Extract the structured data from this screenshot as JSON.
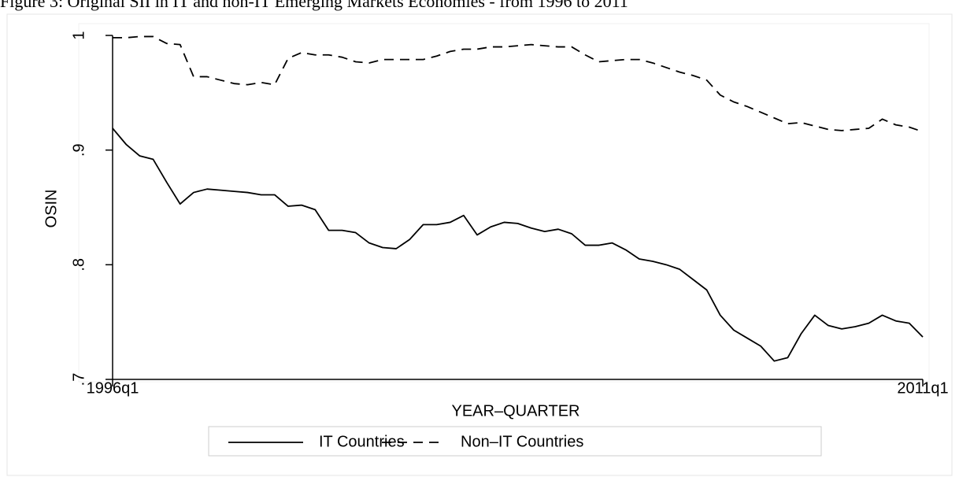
{
  "chart_data": {
    "type": "line",
    "title": "Figure 3: Original SII in IT and non-IT Emerging Markets Economies - from 1996 to 2011",
    "x_label": "YEAR–QUARTER",
    "y_label": "OSIN",
    "categories": [
      "1996q1",
      null,
      null,
      null,
      null,
      null,
      null,
      null,
      null,
      null,
      null,
      null,
      null,
      null,
      null,
      null,
      null,
      null,
      null,
      null,
      null,
      null,
      null,
      null,
      null,
      null,
      null,
      null,
      null,
      null,
      null,
      null,
      null,
      null,
      null,
      null,
      null,
      null,
      null,
      null,
      null,
      null,
      null,
      null,
      null,
      null,
      null,
      null,
      null,
      null,
      null,
      null,
      null,
      null,
      null,
      null,
      null,
      null,
      null,
      null,
      "2011q1"
    ],
    "ylim": [
      0.7,
      1
    ],
    "yticks": [
      {
        "value": 0.7,
        "label": ".7"
      },
      {
        "value": 0.8,
        "label": ".8"
      },
      {
        "value": 0.9,
        "label": ".9"
      },
      1
    ],
    "legend": "bottom",
    "series": [
      {
        "name": "IT Countries",
        "color": "#000000",
        "line_style": "solid",
        "values": [
          0.919,
          0.905,
          0.895,
          0.892,
          0.872,
          0.853,
          0.863,
          0.866,
          0.865,
          0.864,
          0.863,
          0.861,
          0.861,
          0.851,
          0.852,
          0.848,
          0.83,
          0.83,
          0.828,
          0.819,
          0.815,
          0.814,
          0.822,
          0.835,
          0.835,
          0.837,
          0.843,
          0.826,
          0.833,
          0.837,
          0.836,
          0.832,
          0.829,
          0.831,
          0.827,
          0.817,
          0.817,
          0.819,
          0.813,
          0.805,
          0.803,
          0.8,
          0.796,
          0.787,
          0.778,
          0.756,
          0.743,
          0.736,
          0.729,
          0.716,
          0.719,
          0.74,
          0.756,
          0.747,
          0.744,
          0.746,
          0.749,
          0.756,
          0.751,
          0.749,
          0.737
        ]
      },
      {
        "name": "Non–IT Countries",
        "color": "#000000",
        "line_style": "dashed",
        "values": [
          0.998,
          0.998,
          0.999,
          0.999,
          0.993,
          0.992,
          0.964,
          0.964,
          0.961,
          0.958,
          0.957,
          0.959,
          0.957,
          0.98,
          0.985,
          0.983,
          0.983,
          0.981,
          0.977,
          0.976,
          0.979,
          0.979,
          0.979,
          0.979,
          0.982,
          0.986,
          0.988,
          0.988,
          0.99,
          0.99,
          0.991,
          0.992,
          0.991,
          0.99,
          0.99,
          0.983,
          0.977,
          0.978,
          0.979,
          0.979,
          0.976,
          0.972,
          0.968,
          0.965,
          0.961,
          0.948,
          0.942,
          0.938,
          0.933,
          0.928,
          0.923,
          0.924,
          0.921,
          0.918,
          0.917,
          0.918,
          0.919,
          0.927,
          0.922,
          0.92,
          0.916
        ]
      }
    ]
  }
}
